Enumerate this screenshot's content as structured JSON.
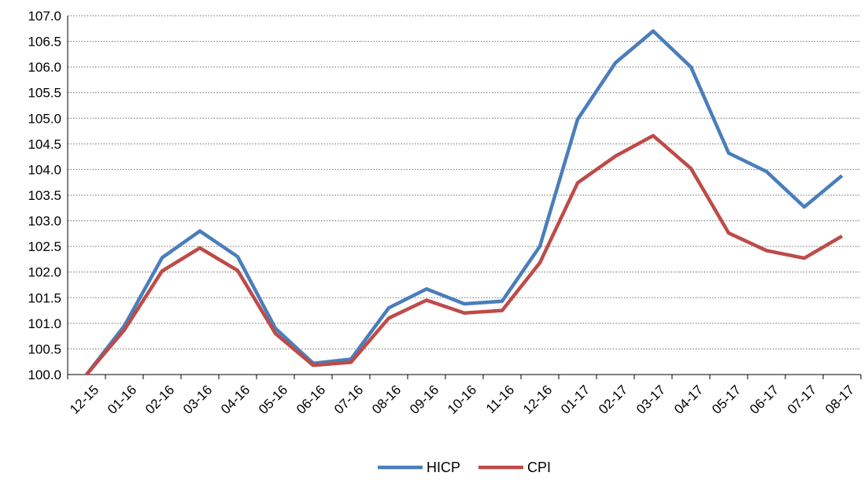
{
  "chart_data": {
    "type": "line",
    "title": "",
    "xlabel": "",
    "ylabel": "",
    "categories": [
      "12-15",
      "01-16",
      "02-16",
      "03-16",
      "04-16",
      "05-16",
      "06-16",
      "07-16",
      "08-16",
      "09-16",
      "10-16",
      "11-16",
      "12-16",
      "01-17",
      "02-17",
      "03-17",
      "04-17",
      "05-17",
      "06-17",
      "07-17",
      "08-17"
    ],
    "series": [
      {
        "name": "HICP",
        "color": "#4a7ebb",
        "values": [
          100.0,
          100.95,
          102.28,
          102.8,
          102.3,
          100.9,
          100.22,
          100.3,
          101.3,
          101.67,
          101.38,
          101.43,
          102.5,
          104.98,
          106.08,
          106.7,
          106.0,
          104.32,
          103.96,
          103.27,
          103.88
        ]
      },
      {
        "name": "CPI",
        "color": "#be4b48",
        "values": [
          100.0,
          100.87,
          102.02,
          102.47,
          102.03,
          100.8,
          100.18,
          100.24,
          101.1,
          101.45,
          101.2,
          101.25,
          102.18,
          103.74,
          104.26,
          104.66,
          104.02,
          102.76,
          102.42,
          102.27,
          102.7
        ]
      }
    ],
    "ylim": [
      100.0,
      107.0
    ],
    "y_ticks": [
      "100.0",
      "100.5",
      "101.0",
      "101.5",
      "102.0",
      "102.5",
      "103.0",
      "103.5",
      "104.0",
      "104.5",
      "105.0",
      "105.5",
      "106.0",
      "106.5",
      "107.0"
    ],
    "grid": true,
    "legend_position": "bottom-center"
  }
}
